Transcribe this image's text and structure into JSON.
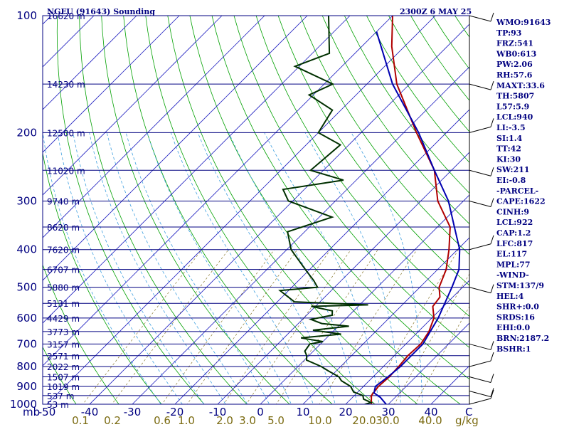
{
  "chart_data": {
    "type": "line",
    "title": "NGFU (91643) Sounding",
    "timestamp": "2300Z  6 MAY 25",
    "pressure_axis_label": "mb",
    "temperature_unit_label": "C",
    "mixing_ratio_unit_label": "g/kg",
    "pressure_ticks": [
      "100",
      "200",
      "300",
      "400",
      "500",
      "600",
      "700",
      "800",
      "900",
      "1000"
    ],
    "temperature_ticks": [
      "-50",
      "-40",
      "-30",
      "-20",
      "-10",
      "0",
      "10",
      "20",
      "30",
      "40"
    ],
    "mixing_ratio_ticks": [
      "0.1",
      "0.2",
      "0.6",
      "1.0",
      "2.0",
      "3.0",
      "5.0",
      "10.0",
      "20.0",
      "30.0",
      "40.0"
    ],
    "height_levels": [
      {
        "p": 100,
        "label": "16620 m"
      },
      {
        "p": 150,
        "label": "14230 m"
      },
      {
        "p": 200,
        "label": "12500 m"
      },
      {
        "p": 250,
        "label": "11020 m"
      },
      {
        "p": 300,
        "label": "9740 m"
      },
      {
        "p": 350,
        "label": "8620 m"
      },
      {
        "p": 400,
        "label": "7620 m"
      },
      {
        "p": 450,
        "label": "6707 m"
      },
      {
        "p": 500,
        "label": "5880 m"
      },
      {
        "p": 550,
        "label": "5131 m"
      },
      {
        "p": 600,
        "label": "4429 m"
      },
      {
        "p": 650,
        "label": "3773 m"
      },
      {
        "p": 700,
        "label": "3157 m"
      },
      {
        "p": 750,
        "label": "2571 m"
      },
      {
        "p": 800,
        "label": "2022 m"
      },
      {
        "p": 850,
        "label": "1507 m"
      },
      {
        "p": 900,
        "label": "1019 m"
      },
      {
        "p": 950,
        "label": "537 m"
      },
      {
        "p": 1000,
        "label": "53 m"
      }
    ],
    "series": [
      {
        "key": "temperature",
        "color": "#b00000",
        "points": [
          [
            1007,
            30
          ],
          [
            1000,
            26
          ],
          [
            950,
            24
          ],
          [
            900,
            23.5
          ],
          [
            850,
            23.8
          ],
          [
            800,
            23.6
          ],
          [
            750,
            23.2
          ],
          [
            700,
            23.5
          ],
          [
            650,
            22.5
          ],
          [
            600,
            20.5
          ],
          [
            560,
            17.5
          ],
          [
            530,
            17
          ],
          [
            500,
            14.5
          ],
          [
            450,
            12
          ],
          [
            400,
            8
          ],
          [
            350,
            3
          ],
          [
            300,
            -6
          ],
          [
            250,
            -14
          ],
          [
            200,
            -27
          ],
          [
            150,
            -43
          ],
          [
            120,
            -53
          ],
          [
            100,
            -60
          ]
        ]
      },
      {
        "key": "dewpoint",
        "color": "#003000",
        "points": [
          [
            1007,
            24
          ],
          [
            990,
            25.5
          ],
          [
            970,
            23
          ],
          [
            950,
            22
          ],
          [
            930,
            19
          ],
          [
            900,
            17
          ],
          [
            870,
            13.5
          ],
          [
            850,
            12
          ],
          [
            820,
            8
          ],
          [
            800,
            5.5
          ],
          [
            770,
            0.5
          ],
          [
            750,
            -0.5
          ],
          [
            730,
            -2
          ],
          [
            700,
            -2.5
          ],
          [
            690,
            0
          ],
          [
            675,
            -6
          ],
          [
            660,
            2.5
          ],
          [
            645,
            -5
          ],
          [
            630,
            2.5
          ],
          [
            620,
            -4.5
          ],
          [
            605,
            -8
          ],
          [
            590,
            -4
          ],
          [
            575,
            -5
          ],
          [
            560,
            -11
          ],
          [
            555,
            2
          ],
          [
            545,
            -16
          ],
          [
            510,
            -22
          ],
          [
            500,
            -14
          ],
          [
            480,
            -16.5
          ],
          [
            450,
            -21
          ],
          [
            400,
            -29
          ],
          [
            360,
            -34
          ],
          [
            330,
            -27
          ],
          [
            300,
            -41
          ],
          [
            280,
            -45
          ],
          [
            265,
            -33
          ],
          [
            250,
            -43
          ],
          [
            215,
            -42
          ],
          [
            200,
            -50
          ],
          [
            175,
            -52
          ],
          [
            160,
            -61
          ],
          [
            150,
            -58
          ],
          [
            135,
            -71
          ],
          [
            125,
            -66
          ],
          [
            100,
            -75
          ]
        ]
      },
      {
        "key": "parcel",
        "color": "#0000b0",
        "points": [
          [
            1007,
            30
          ],
          [
            960,
            26.5
          ],
          [
            935,
            24
          ],
          [
            900,
            22.8
          ],
          [
            850,
            23.5
          ],
          [
            800,
            24
          ],
          [
            700,
            24
          ],
          [
            600,
            21.5
          ],
          [
            500,
            17.5
          ],
          [
            450,
            15
          ],
          [
            400,
            10.5
          ],
          [
            350,
            4
          ],
          [
            300,
            -3.5
          ],
          [
            250,
            -14
          ],
          [
            200,
            -26.5
          ],
          [
            150,
            -44
          ],
          [
            110,
            -60
          ]
        ]
      }
    ],
    "wind_barbs": [
      {
        "p": 1000
      },
      {
        "p": 925
      },
      {
        "p": 850
      },
      {
        "p": 800
      },
      {
        "p": 700
      },
      {
        "p": 500
      },
      {
        "p": 400
      },
      {
        "p": 300
      },
      {
        "p": 250
      },
      {
        "p": 200
      },
      {
        "p": 150
      },
      {
        "p": 100
      }
    ]
  },
  "indices": [
    "WMO:91643",
    "TP:93",
    "FRZ:541",
    "WB0:613",
    "PW:2.06",
    "RH:57.6",
    "MAXT:33.6",
    "TH:5807",
    "L57:5.9",
    "LCL:940",
    "LI:-3.5",
    "SI:1.4",
    "TT:42",
    "KI:30",
    "SW:211",
    "EI:-0.8",
    "-PARCEL-",
    "CAPE:1622",
    "CINH:9",
    "LCL:922",
    "CAP:1.2",
    "LFC:817",
    "EL:117",
    "MPL:77",
    "-WIND-",
    "STM:137/9",
    "HEL:4",
    "SHR+:0.0",
    "SRDS:16",
    "EHI:0.0",
    "BRN:2187.2",
    "BSHR:1"
  ]
}
